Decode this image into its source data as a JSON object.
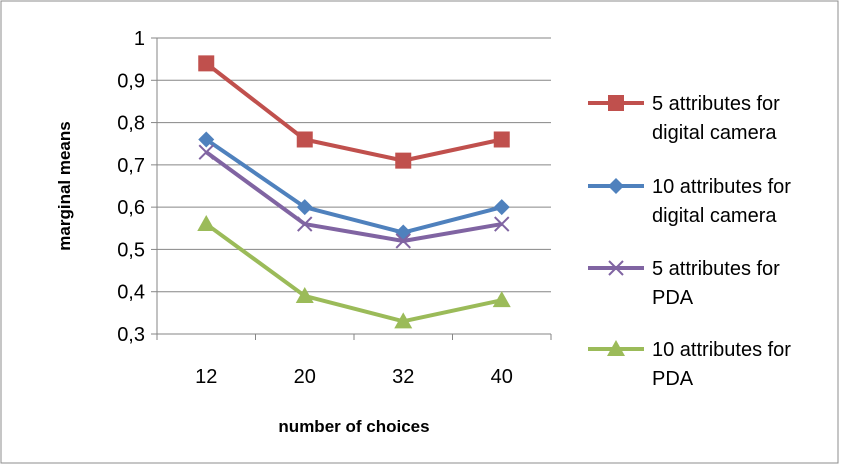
{
  "chart_data": {
    "type": "line",
    "xlabel": "number of choices",
    "ylabel": "marginal means",
    "categories": [
      "12",
      "20",
      "32",
      "40"
    ],
    "ylim": [
      0.3,
      1.0
    ],
    "yticks": [
      "0,3",
      "0,4",
      "0,5",
      "0,6",
      "0,7",
      "0,8",
      "0,9",
      "1"
    ],
    "grid": "horizontal",
    "legend_position": "right",
    "series": [
      {
        "name": "5 attributes for digital camera",
        "legend_lines": [
          "5 attributes for",
          "digital camera"
        ],
        "values": [
          0.94,
          0.76,
          0.71,
          0.76
        ],
        "color": "#C0504D",
        "marker": "square"
      },
      {
        "name": "10 attributes for digital camera",
        "legend_lines": [
          "10 attributes for",
          "digital camera"
        ],
        "values": [
          0.76,
          0.6,
          0.54,
          0.6
        ],
        "color": "#4F81BD",
        "marker": "diamond"
      },
      {
        "name": "5 attributes for PDA",
        "legend_lines": [
          "5 attributes for",
          "PDA"
        ],
        "values": [
          0.73,
          0.56,
          0.52,
          0.56
        ],
        "color": "#8064A2",
        "marker": "x"
      },
      {
        "name": "10 attributes for PDA",
        "legend_lines": [
          "10 attributes for",
          "PDA"
        ],
        "values": [
          0.56,
          0.39,
          0.33,
          0.38
        ],
        "color": "#9BBB59",
        "marker": "triangle"
      }
    ]
  }
}
